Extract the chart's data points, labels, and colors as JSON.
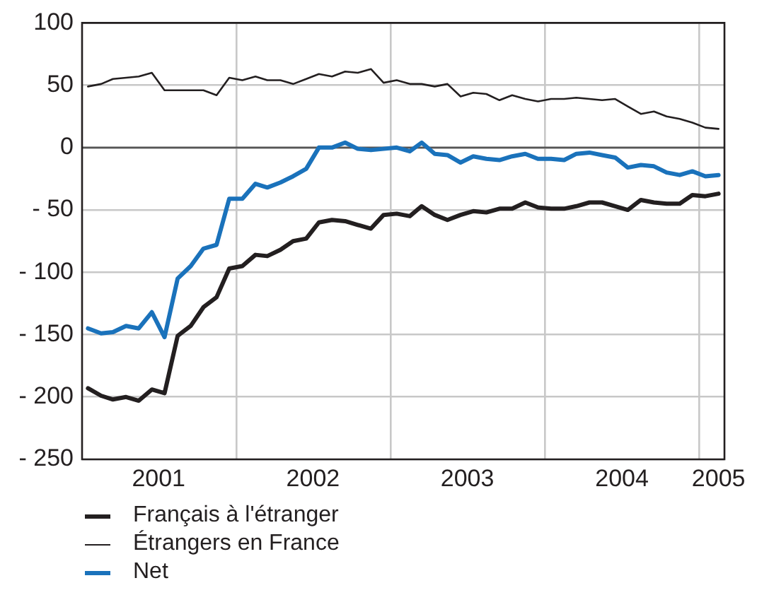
{
  "chart_data": {
    "type": "line",
    "x": [
      "2001-01-15",
      "2001-02-15",
      "2001-03-15",
      "2001-04-15",
      "2001-05-15",
      "2001-06-15",
      "2001-07-15",
      "2001-08-15",
      "2001-09-15",
      "2001-10-15",
      "2001-11-15",
      "2001-12-15",
      "2002-01-15",
      "2002-02-15",
      "2002-03-15",
      "2002-04-15",
      "2002-05-15",
      "2002-06-15",
      "2002-07-15",
      "2002-08-15",
      "2002-09-15",
      "2002-10-15",
      "2002-11-15",
      "2002-12-15",
      "2003-01-15",
      "2003-02-15",
      "2003-03-15",
      "2003-04-15",
      "2003-05-15",
      "2003-06-15",
      "2003-07-15",
      "2003-08-15",
      "2003-09-15",
      "2003-10-15",
      "2003-11-15",
      "2003-12-15",
      "2004-01-15",
      "2004-02-15",
      "2004-03-15",
      "2004-04-15",
      "2004-05-15",
      "2004-06-15",
      "2004-07-15",
      "2004-08-15",
      "2004-09-15",
      "2004-10-15",
      "2004-11-15",
      "2004-12-15",
      "2005-01-15",
      "2005-02-15"
    ],
    "series": [
      {
        "name": "Français à l'étranger",
        "color": "#231f20",
        "values": [
          -193,
          -199,
          -202,
          -200,
          -203,
          -194,
          -197,
          -151,
          -143,
          -128,
          -120,
          -97,
          -95,
          -86,
          -87,
          -82,
          -75,
          -73,
          -60,
          -58,
          -59,
          -62,
          -65,
          -54,
          -53,
          -55,
          -47,
          -54,
          -58,
          -54,
          -51,
          -52,
          -49,
          -49,
          -44,
          -48,
          -49,
          -49,
          -47,
          -44,
          -44,
          -47,
          -50,
          -42,
          -44,
          -45,
          -45,
          -38,
          -39,
          -37
        ]
      },
      {
        "name": "Étrangers en France",
        "color": "#231f20",
        "values": [
          49,
          51,
          55,
          56,
          57,
          60,
          46,
          46,
          46,
          46,
          42,
          56,
          54,
          57,
          54,
          54,
          51,
          55,
          59,
          57,
          61,
          60,
          63,
          52,
          54,
          51,
          51,
          49,
          51,
          41,
          44,
          43,
          38,
          42,
          39,
          37,
          39,
          39,
          40,
          39,
          38,
          39,
          33,
          27,
          29,
          25,
          23,
          20,
          16,
          15
        ]
      },
      {
        "name": "Net",
        "color": "#1a72bb",
        "values": [
          -145,
          -149,
          -148,
          -143,
          -145,
          -132,
          -152,
          -105,
          -95,
          -81,
          -78,
          -41,
          -41,
          -29,
          -32,
          -28,
          -23,
          -17,
          0,
          0,
          4,
          -1,
          -2,
          -1,
          0,
          -3,
          4,
          -5,
          -6,
          -12,
          -7,
          -9,
          -10,
          -7,
          -5,
          -9,
          -9,
          -10,
          -5,
          -4,
          -6,
          -8,
          -16,
          -14,
          -15,
          -20,
          -22,
          -19,
          -23,
          -22
        ]
      }
    ],
    "xlim": [
      "2001-01-01",
      "2005-03-01"
    ],
    "xticks": [
      {
        "value": "2001-07-01",
        "label": "2001"
      },
      {
        "value": "2002-01-01",
        "label": null
      },
      {
        "value": "2002-07-01",
        "label": "2002"
      },
      {
        "value": "2003-01-01",
        "label": null
      },
      {
        "value": "2003-07-01",
        "label": "2003"
      },
      {
        "value": "2004-01-01",
        "label": null
      },
      {
        "value": "2004-07-01",
        "label": "2004"
      },
      {
        "value": "2005-01-01",
        "label": null
      },
      {
        "value": "2005-02-15",
        "label": "2005"
      }
    ],
    "ylim": [
      -250,
      100
    ],
    "yticks": [
      {
        "value": -250,
        "label": "- 250"
      },
      {
        "value": -200,
        "label": "- 200"
      },
      {
        "value": -150,
        "label": "- 150"
      },
      {
        "value": -100,
        "label": "- 100"
      },
      {
        "value": -50,
        "label": "- 50"
      },
      0,
      50,
      100
    ],
    "ref_lines": [
      {
        "axis": "y",
        "value": 0,
        "color": "#555555"
      }
    ],
    "grid": true,
    "legend": "bottom left",
    "marker": "none",
    "line_style": "solid"
  }
}
